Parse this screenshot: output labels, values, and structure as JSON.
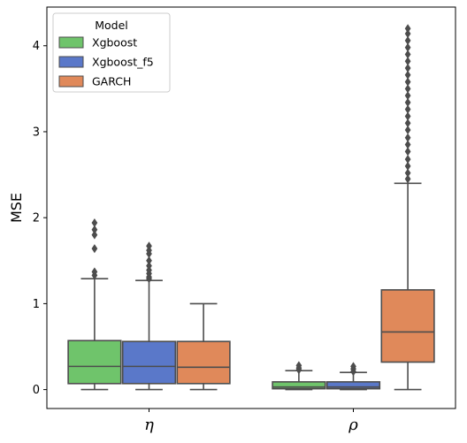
{
  "chart_data": {
    "type": "box",
    "ylabel": "MSE",
    "xlabel": "",
    "ylim": [
      -0.22,
      4.45
    ],
    "yticks": [
      0,
      1,
      2,
      3,
      4
    ],
    "categories": [
      "η",
      "ρ"
    ],
    "legend": {
      "title": "Model",
      "position": "top-left"
    },
    "series": [
      {
        "name": "Xgboost",
        "color": "#6fc46b",
        "boxes": [
          {
            "category": "η",
            "min": 0.0,
            "q1": 0.07,
            "median": 0.27,
            "q3": 0.57,
            "max": 1.29,
            "outliers": [
              1.33,
              1.37,
              1.64,
              1.8,
              1.86,
              1.94
            ]
          },
          {
            "category": "ρ",
            "min": 0.0,
            "q1": 0.01,
            "median": 0.03,
            "q3": 0.09,
            "max": 0.22,
            "outliers": [
              0.23,
              0.25,
              0.28
            ]
          }
        ]
      },
      {
        "name": "Xgboost_f5",
        "color": "#5a78c9",
        "boxes": [
          {
            "category": "η",
            "min": 0.0,
            "q1": 0.07,
            "median": 0.27,
            "q3": 0.56,
            "max": 1.27,
            "outliers": [
              1.29,
              1.31,
              1.35,
              1.39,
              1.44,
              1.5,
              1.58,
              1.62,
              1.67
            ]
          },
          {
            "category": "ρ",
            "min": 0.0,
            "q1": 0.01,
            "median": 0.03,
            "q3": 0.09,
            "max": 0.2,
            "outliers": [
              0.21,
              0.24,
              0.27
            ]
          }
        ]
      },
      {
        "name": "GARCH",
        "color": "#e0895a",
        "boxes": [
          {
            "category": "η",
            "min": 0.0,
            "q1": 0.07,
            "median": 0.26,
            "q3": 0.56,
            "max": 1.0,
            "outliers": []
          },
          {
            "category": "ρ",
            "min": 0.0,
            "q1": 0.32,
            "median": 0.67,
            "q3": 1.16,
            "max": 2.4,
            "outliers": [
              2.45,
              2.52,
              2.6,
              2.68,
              2.77,
              2.85,
              2.93,
              3.02,
              3.1,
              3.18,
              3.26,
              3.34,
              3.42,
              3.5,
              3.58,
              3.66,
              3.74,
              3.82,
              3.9,
              3.98,
              4.06,
              4.14,
              4.2
            ]
          }
        ]
      }
    ]
  }
}
